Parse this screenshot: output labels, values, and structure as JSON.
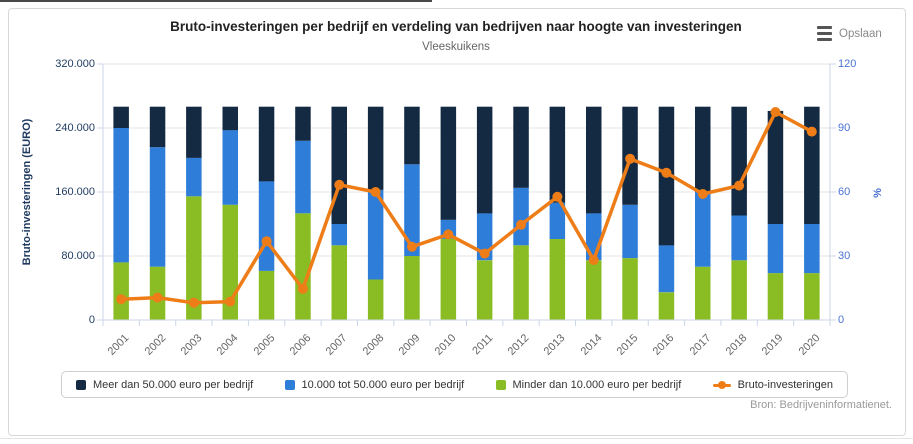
{
  "header": {
    "title": "Bruto-investeringen per bedrijf en verdeling van bedrijven naar hoogte van investeringen",
    "subtitle": "Vleeskuikens",
    "export_label": "Opslaan"
  },
  "source": "Bron: Bedrijveninformatienet.",
  "colors": {
    "navy": "#142a42",
    "blue": "#2e7dd8",
    "green": "#8abd24",
    "orange": "#ee7d18",
    "gridline": "#e6e6e6",
    "axis_line": "#ccd6eb"
  },
  "legend": {
    "items": [
      {
        "label": "Meer dan 50.000 euro per bedrijf",
        "marker": "square",
        "color": "#142a42"
      },
      {
        "label": "10.000 tot 50.000 euro per bedrijf",
        "marker": "square",
        "color": "#2e7dd8"
      },
      {
        "label": "Minder dan 10.000 euro per bedrijf",
        "marker": "square",
        "color": "#8abd24"
      },
      {
        "label": "Bruto-investeringen",
        "marker": "line",
        "color": "#ee7d18"
      }
    ]
  },
  "chart_data": {
    "type": "bar",
    "subtype": "stacked-percent-columns-with-line",
    "title": "Bruto-investeringen per bedrijf en verdeling van bedrijven naar hoogte van investeringen",
    "subtitle": "Vleeskuikens",
    "grid": true,
    "legend_position": "bottom",
    "categories": [
      "2001",
      "2002",
      "2003",
      "2004",
      "2005",
      "2006",
      "2007",
      "2008",
      "2009",
      "2010",
      "2011",
      "2012",
      "2013",
      "2014",
      "2015",
      "2016",
      "2017",
      "2018",
      "2019",
      "2020"
    ],
    "axes": {
      "left": {
        "title": "Bruto-investeringen (EURO)",
        "min": 0,
        "max": 320000,
        "tick_values": [
          0,
          80000,
          160000,
          240000,
          320000
        ],
        "tick_labels": [
          "0",
          "80.000",
          "160.000",
          "240.000",
          "320.000"
        ]
      },
      "right": {
        "title": "%",
        "min": 0,
        "max": 120,
        "tick_values": [
          0,
          30,
          60,
          90,
          120
        ],
        "tick_labels": [
          "0",
          "30",
          "60",
          "90",
          "120"
        ]
      }
    },
    "bar_series_legend_order": [
      {
        "name": "Meer dan 50.000 euro per bedrijf",
        "color": "#142a42",
        "axis": "right",
        "unit": "%",
        "values": [
          10,
          19,
          24,
          11,
          35,
          16,
          55,
          39,
          27,
          53,
          50,
          38,
          45,
          50,
          46,
          65,
          40,
          51,
          53,
          55
        ]
      },
      {
        "name": "10.000 tot 50.000 euro per bedrijf",
        "color": "#2e7dd8",
        "axis": "right",
        "unit": "%",
        "values": [
          63,
          56,
          18,
          35,
          42,
          34,
          10,
          42,
          43,
          9,
          22,
          27,
          17,
          22,
          25,
          22,
          35,
          21,
          23,
          23
        ]
      },
      {
        "name": "Minder dan 10.000 euro per bedrijf",
        "color": "#8abd24",
        "axis": "right",
        "unit": "%",
        "values": [
          27,
          25,
          58,
          54,
          23,
          50,
          35,
          19,
          30,
          38,
          28,
          35,
          38,
          28,
          29,
          13,
          25,
          28,
          22,
          22
        ]
      }
    ],
    "line_series": {
      "name": "Bruto-investeringen",
      "color": "#ee7d18",
      "axis": "left",
      "unit": "EURO",
      "values": [
        26000,
        28000,
        21500,
        23000,
        98500,
        39000,
        169000,
        160000,
        91500,
        107000,
        83000,
        119000,
        154000,
        75000,
        201500,
        184000,
        157500,
        168000,
        260000,
        235500
      ]
    }
  }
}
